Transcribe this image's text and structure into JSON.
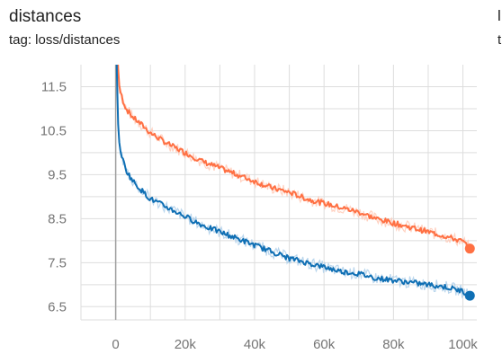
{
  "header": {
    "title": "distances",
    "tag": "tag: loss/distances",
    "cut_off_title_glyph": "l",
    "cut_off_tag_glyph": "t"
  },
  "colors": {
    "series_orange": "#ff7043",
    "series_blue": "#0f6fb4",
    "series_blue_raw": "#a9cce8",
    "series_orange_raw": "#ffc7b3",
    "grid": "#dddddd",
    "axis_text": "#757575"
  },
  "chart_data": {
    "type": "line",
    "title": "distances",
    "xlabel": "",
    "ylabel": "",
    "xlim": [
      -10000,
      104000
    ],
    "ylim": [
      6.2,
      12.0
    ],
    "x_ticks": [
      0,
      20000,
      40000,
      60000,
      80000,
      100000
    ],
    "x_tick_labels": [
      "0",
      "20k",
      "40k",
      "60k",
      "80k",
      "100k"
    ],
    "y_ticks": [
      6.5,
      7.5,
      8.5,
      9.5,
      10.5,
      11.5
    ],
    "y_tick_labels": [
      "6.5",
      "7.5",
      "8.5",
      "9.5",
      "10.5",
      "11.5"
    ],
    "grid": true,
    "legend": "none",
    "series": [
      {
        "color": "#ff7043",
        "x": [
          0,
          500,
          1000,
          2000,
          3000,
          5000,
          8000,
          10000,
          15000,
          20000,
          25000,
          30000,
          35000,
          40000,
          45000,
          50000,
          55000,
          60000,
          65000,
          70000,
          75000,
          80000,
          85000,
          90000,
          95000,
          100000,
          102000
        ],
        "y": [
          14.0,
          12.2,
          11.5,
          11.2,
          11.0,
          10.8,
          10.6,
          10.45,
          10.2,
          10.0,
          9.8,
          9.65,
          9.5,
          9.35,
          9.2,
          9.1,
          8.95,
          8.85,
          8.75,
          8.65,
          8.5,
          8.4,
          8.3,
          8.2,
          8.1,
          7.98,
          7.82
        ]
      },
      {
        "color": "#0f6fb4",
        "x": [
          0,
          500,
          1000,
          2000,
          3000,
          5000,
          8000,
          10000,
          15000,
          20000,
          25000,
          30000,
          35000,
          40000,
          45000,
          50000,
          55000,
          60000,
          65000,
          70000,
          75000,
          80000,
          85000,
          90000,
          95000,
          100000,
          102000
        ],
        "y": [
          14.0,
          11.0,
          10.2,
          9.85,
          9.6,
          9.35,
          9.1,
          8.95,
          8.75,
          8.55,
          8.35,
          8.2,
          8.05,
          7.9,
          7.75,
          7.6,
          7.5,
          7.4,
          7.3,
          7.25,
          7.15,
          7.1,
          7.05,
          7.0,
          6.95,
          6.85,
          6.75
        ]
      }
    ]
  }
}
